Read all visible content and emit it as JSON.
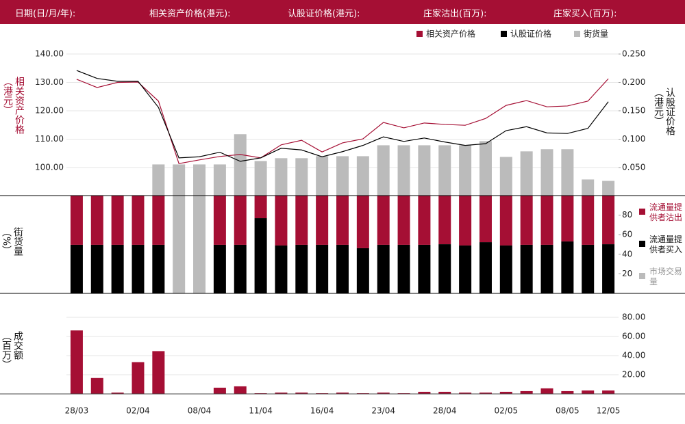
{
  "header": {
    "fields": [
      "日期(日/月/年):",
      "相关资产价格(港元):",
      "认股证价格(港元):",
      "庄家沽出(百万):",
      "庄家买入(百万):"
    ]
  },
  "chart_data": [
    {
      "type": "line",
      "ylabel": "相关资产价格（港元）",
      "y2label": "认股证价格（港元）",
      "ylim": [
        90,
        140
      ],
      "yticks": [
        {
          "value": 100,
          "label": "100.00"
        },
        {
          "value": 110,
          "label": "110.00"
        },
        {
          "value": 120,
          "label": "120.00"
        },
        {
          "value": 130,
          "label": "130.00"
        },
        {
          "value": 140,
          "label": "140.00"
        }
      ],
      "y2lim": [
        0,
        0.25
      ],
      "y2ticks": [
        {
          "value": 0.05,
          "label": "0.050"
        },
        {
          "value": 0.1,
          "label": "0.100"
        },
        {
          "value": 0.15,
          "label": "0.150"
        },
        {
          "value": 0.2,
          "label": "0.200"
        },
        {
          "value": 0.25,
          "label": "0.250"
        }
      ],
      "y3lim": [
        0,
        100
      ],
      "grid": true,
      "series": [
        {
          "name": "相关资产价格",
          "color": "#a50f34",
          "values": [
            131.1,
            128.2,
            130.0,
            130.1,
            123.4,
            101.4,
            102.7,
            103.9,
            104.6,
            103.4,
            108.0,
            109.6,
            105.5,
            108.7,
            110.1,
            115.9,
            114.0,
            115.7,
            115.2,
            114.9,
            117.3,
            121.9,
            123.6,
            121.4,
            121.7,
            123.4,
            131.3
          ]
        },
        {
          "name": "认股证价格",
          "color": "#000000",
          "axis": "y2",
          "values": [
            0.221,
            0.207,
            0.202,
            0.202,
            0.156,
            0.067,
            0.069,
            0.077,
            0.061,
            0.067,
            0.084,
            0.081,
            0.069,
            0.078,
            0.089,
            0.104,
            0.096,
            0.102,
            0.095,
            0.089,
            0.092,
            0.115,
            0.122,
            0.111,
            0.11,
            0.119,
            0.166
          ]
        },
        {
          "name": "街货量",
          "color": "#bbbbbb",
          "axis": "y3",
          "values": [
            null,
            null,
            null,
            null,
            22.2,
            22.2,
            22.2,
            22.2,
            43.5,
            24.6,
            26.6,
            26.6,
            28.0,
            28.0,
            28.0,
            35.7,
            35.7,
            35.7,
            35.7,
            35.7,
            38.6,
            27.5,
            31.4,
            32.9,
            32.9,
            11.6,
            10.6
          ]
        }
      ]
    },
    {
      "type": "stacked_bar",
      "ylabel": "街货量（%）",
      "ylim": [
        0,
        100
      ],
      "yticks": [
        20,
        40,
        60,
        80
      ],
      "series": [
        {
          "name": "流通量提供者沽出",
          "color": "#a50f34",
          "values": [
            50.3,
            50.3,
            50.3,
            50.3,
            50.3,
            null,
            null,
            50.3,
            50.3,
            23.1,
            51.0,
            50.3,
            50.3,
            50.3,
            53.8,
            50.3,
            50.3,
            50.3,
            49.7,
            51.0,
            47.6,
            51.0,
            50.3,
            50.3,
            46.9,
            50.3,
            49.7
          ]
        },
        {
          "name": "流通量提供者买入",
          "color": "#000000",
          "values": [
            49.7,
            49.7,
            49.7,
            49.7,
            49.7,
            null,
            null,
            49.7,
            49.7,
            76.9,
            49.0,
            49.7,
            49.7,
            49.7,
            46.2,
            49.7,
            49.7,
            49.7,
            50.3,
            49.0,
            52.4,
            49.0,
            49.7,
            49.7,
            53.1,
            49.7,
            50.3
          ]
        },
        {
          "name": "市场交易量",
          "color": "#bbbbbb",
          "values": [
            null,
            null,
            null,
            null,
            null,
            100,
            100,
            null,
            null,
            null,
            null,
            null,
            null,
            null,
            null,
            null,
            null,
            null,
            null,
            null,
            null,
            null,
            null,
            null,
            null,
            null,
            null
          ]
        }
      ]
    },
    {
      "type": "bar",
      "ylabel": "成交额（百万）",
      "color": "#a50f34",
      "grid": true,
      "categories": [
        "28/03",
        null,
        null,
        "02/04",
        null,
        null,
        "08/04",
        null,
        null,
        "11/04",
        null,
        null,
        "16/04",
        null,
        null,
        "23/04",
        null,
        null,
        "28/04",
        null,
        null,
        "02/05",
        null,
        null,
        "08/05",
        null,
        "12/05"
      ],
      "values": [
        66.3,
        16.6,
        1.4,
        33.2,
        44.7,
        0,
        0,
        6.5,
        7.9,
        0.7,
        1.4,
        1.4,
        0.7,
        1.4,
        0.7,
        1.4,
        0.7,
        2.2,
        2.2,
        1.4,
        1.4,
        2.2,
        2.9,
        5.8,
        2.9,
        3.6,
        3.6
      ],
      "ylim": [
        0,
        80
      ],
      "yticks": [
        {
          "value": 20,
          "label": "20.00"
        },
        {
          "value": 40,
          "label": "40.00"
        },
        {
          "value": 60,
          "label": "60.00"
        },
        {
          "value": 80,
          "label": "80.00"
        }
      ]
    }
  ]
}
